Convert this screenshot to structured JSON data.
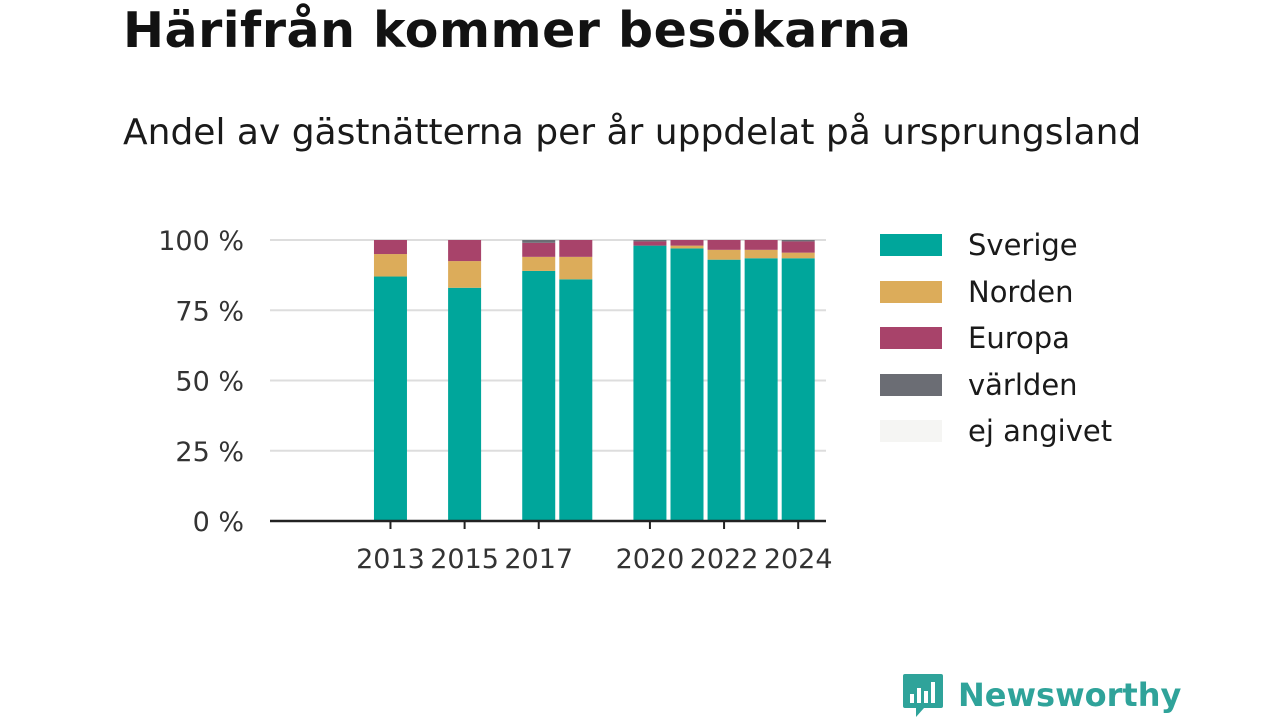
{
  "title": "Härifrån kommer besökarna",
  "subtitle": "Andel av gästnätterna per år uppdelat på ursprungsland",
  "brand": {
    "name": "Newsworthy",
    "icon": "newsworthy-logo-icon"
  },
  "colors": {
    "Sverige": "#00a69b",
    "Norden": "#dcac5a",
    "Europa": "#a8436a",
    "världen": "#6b6d74",
    "ej angivet": "#f5f5f3",
    "axis": "#222222",
    "grid": "#dddddd",
    "brand": "#2fa39a"
  },
  "chart_data": {
    "type": "bar",
    "stacked": true,
    "x": [
      2013,
      2015,
      2017,
      2018,
      2020,
      2021,
      2022,
      2023,
      2024
    ],
    "x_tick_labels": [
      "2013",
      "2015",
      "2017",
      "2020",
      "2022",
      "2024"
    ],
    "x_ticks": [
      2013,
      2015,
      2017,
      2020,
      2022,
      2024
    ],
    "xlim": [
      2009.75,
      2024.75
    ],
    "y_tick_labels": [
      "0 %",
      "25 %",
      "50 %",
      "75 %",
      "100 %"
    ],
    "y_ticks": [
      0,
      25,
      50,
      75,
      100
    ],
    "ylim": [
      0,
      100
    ],
    "series": [
      {
        "name": "Sverige",
        "values": [
          87,
          83,
          89,
          86,
          98,
          97,
          93,
          93.5,
          93.5
        ]
      },
      {
        "name": "Norden",
        "values": [
          8,
          9.5,
          5,
          8,
          0,
          1,
          3.5,
          3,
          2
        ]
      },
      {
        "name": "Europa",
        "values": [
          5,
          7.5,
          5,
          6,
          1.5,
          2,
          3.5,
          3.5,
          4
        ]
      },
      {
        "name": "världen",
        "values": [
          0,
          0,
          1,
          0,
          0.5,
          0,
          0,
          0,
          0.5
        ]
      },
      {
        "name": "ej angivet",
        "values": [
          0,
          0,
          0,
          0,
          0,
          0,
          0,
          0,
          0
        ]
      }
    ],
    "legend_position": "right",
    "grid": true
  }
}
